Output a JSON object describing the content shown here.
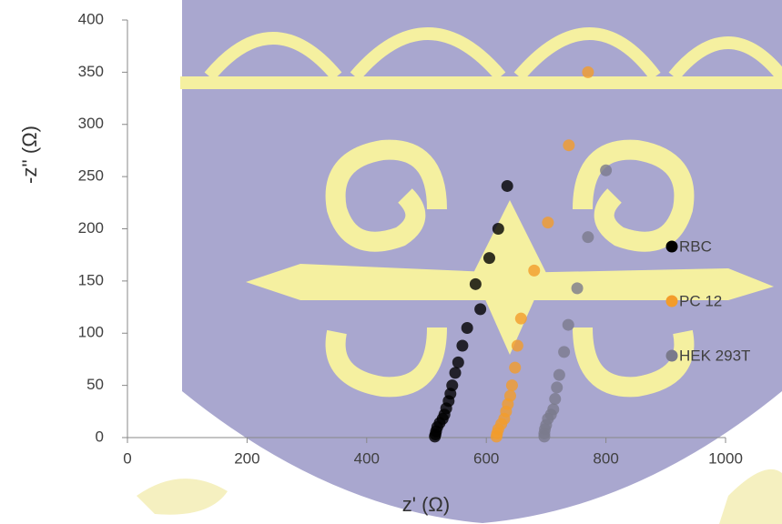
{
  "chart_data": {
    "type": "scatter",
    "x_label": "z' (Ω)",
    "y_label": "-z'' (Ω)",
    "xlim": [
      0,
      1000
    ],
    "xticks": [
      0,
      200,
      400,
      600,
      800,
      1000
    ],
    "ylim": [
      0,
      400
    ],
    "yticks": [
      0,
      50,
      100,
      150,
      200,
      250,
      300,
      350,
      400
    ],
    "legend": "right",
    "series": [
      {
        "name": "RBC",
        "color": "#000000",
        "x": [
          635,
          620,
          605,
          590,
          582,
          568,
          560,
          553,
          548,
          543,
          540,
          537,
          533,
          530,
          527,
          522,
          518,
          516,
          515,
          514
        ],
        "values": [
          241,
          200,
          172,
          123,
          147,
          105,
          88,
          72,
          62,
          50,
          42,
          35,
          28,
          22,
          18,
          14,
          10,
          6,
          3,
          1
        ]
      },
      {
        "name": "PC 12",
        "color": "#f39c2b",
        "x": [
          770,
          738,
          703,
          680,
          658,
          652,
          648,
          643,
          640,
          636,
          633,
          630,
          625,
          620,
          618,
          617
        ],
        "values": [
          350,
          280,
          206,
          160,
          114,
          88,
          67,
          50,
          40,
          32,
          25,
          18,
          13,
          8,
          4,
          1
        ]
      },
      {
        "name": "HEK 293T",
        "color": "#7a7a8c",
        "x": [
          800,
          770,
          752,
          737,
          730,
          722,
          718,
          715,
          712,
          708,
          703,
          700,
          698,
          697,
          697
        ],
        "values": [
          256,
          192,
          143,
          108,
          82,
          60,
          48,
          37,
          27,
          22,
          18,
          12,
          8,
          4,
          1
        ]
      }
    ]
  }
}
